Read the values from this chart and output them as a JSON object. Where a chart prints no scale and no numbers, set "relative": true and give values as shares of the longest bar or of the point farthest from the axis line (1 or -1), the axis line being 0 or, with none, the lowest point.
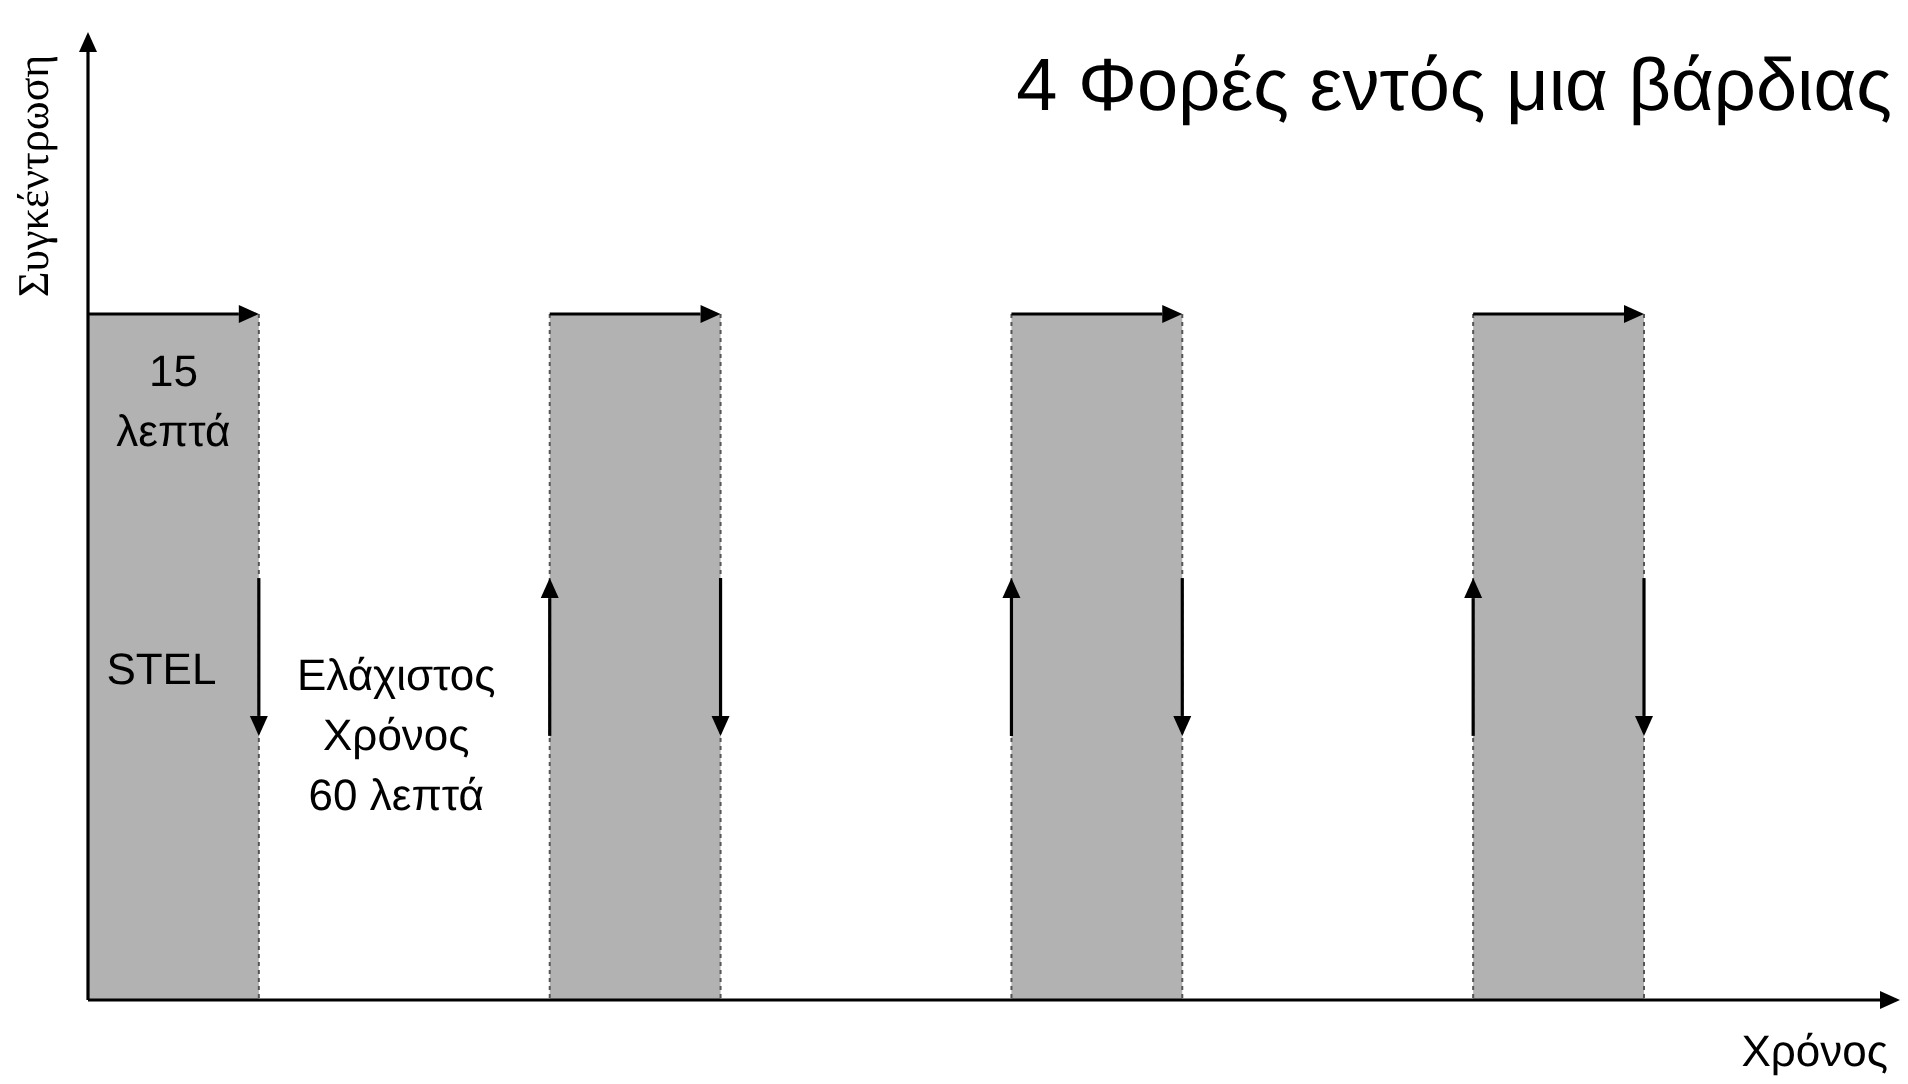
{
  "chart_data": {
    "type": "bar",
    "title": "4 Φορές εντός μια βάρδιας",
    "xlabel": "Χρόνος",
    "ylabel": "Συγκέντρωση",
    "categories": [
      null,
      null,
      null,
      null
    ],
    "values": [
      1,
      1,
      1,
      1
    ],
    "relative": true,
    "color": "#b2b2b2",
    "annotations": [
      "15\nλεπτά",
      "STEL",
      "Ελάχιστος\nΧρόνος\n60 λεπτά"
    ]
  }
}
